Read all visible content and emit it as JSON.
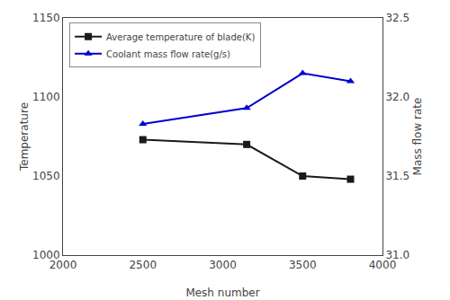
{
  "chart_data": {
    "type": "line",
    "xlabel": "Mesh number",
    "ylabel": "Temperature",
    "y2label": "Mass flow rate",
    "x": [
      2500,
      3150,
      3500,
      3800
    ],
    "series": [
      {
        "name": "Average temperature of blade(K)",
        "color": "#1a1a1a",
        "marker": "square",
        "line_style": "solid",
        "values": [
          1073,
          1070,
          1050,
          1048
        ]
      },
      {
        "name": "Coolant mass flow rate(g/s)",
        "color": "#0000cc",
        "marker": "triangle-up",
        "line_style": "solid",
        "axis": "y2",
        "values": [
          31.83,
          31.93,
          32.15,
          32.1
        ]
      }
    ],
    "xlim": [
      2000,
      4000
    ],
    "xticks": [
      2000,
      2500,
      3000,
      3500,
      4000
    ],
    "ylim": [
      1000,
      1150
    ],
    "yticks": [
      1000,
      1050,
      1100,
      1150
    ],
    "y2lim": [
      31.0,
      32.5
    ],
    "y2ticks": [
      {
        "value": 31.0,
        "label": "31.0"
      },
      31.5,
      {
        "value": 32.0,
        "label": "32.0"
      },
      32.5
    ],
    "grid": false,
    "legend": "upper left"
  }
}
